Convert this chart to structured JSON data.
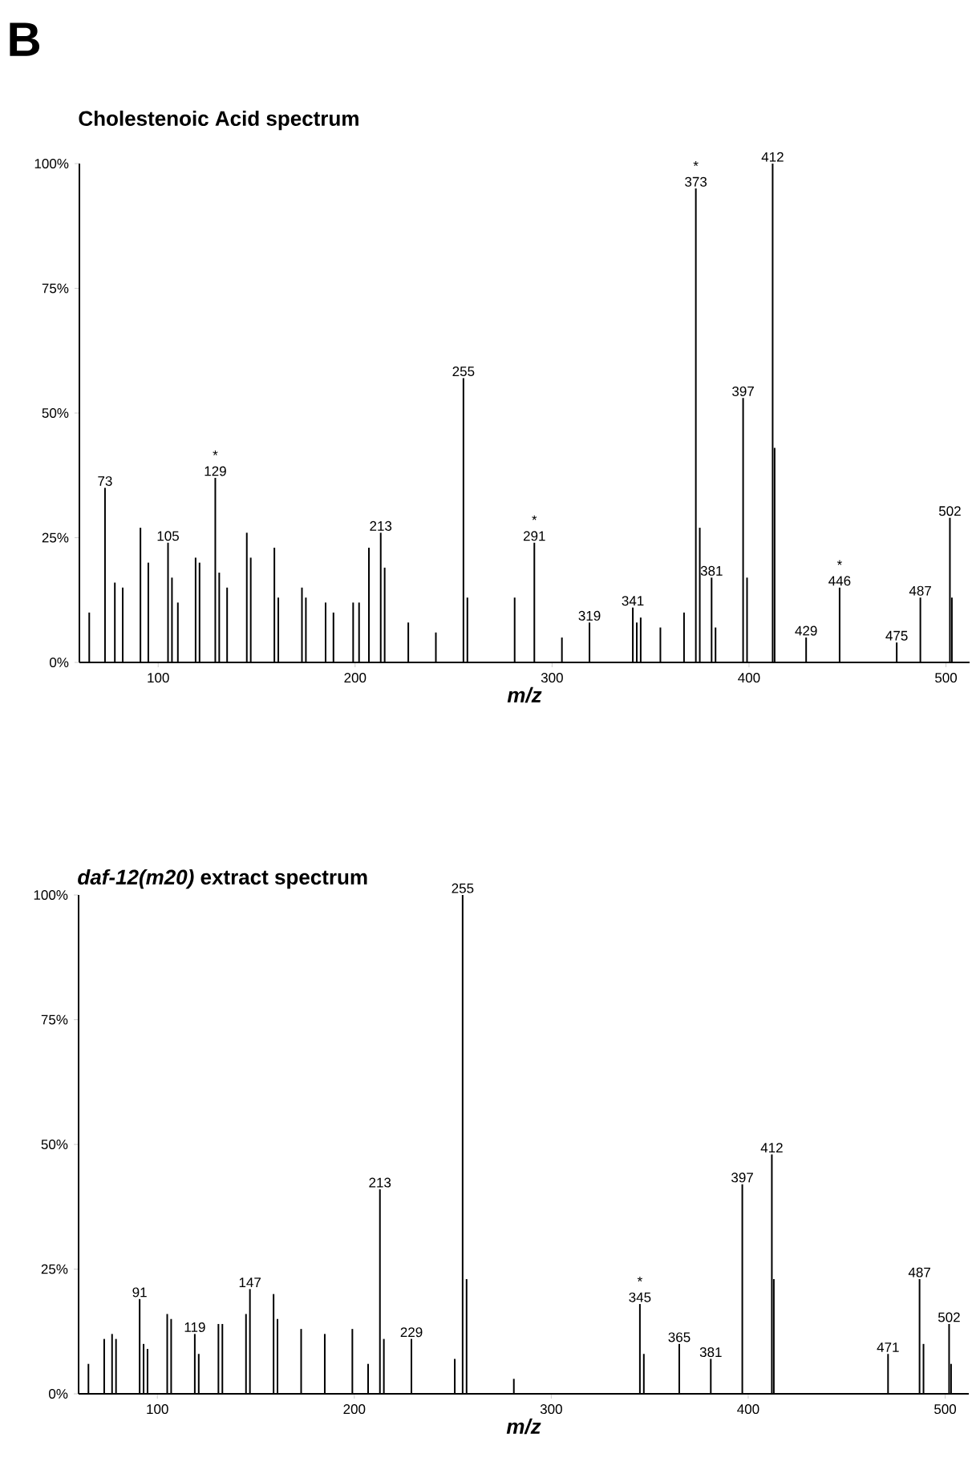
{
  "chart_data": [
    {
      "type": "bar",
      "title": "Cholestenoic Acid spectrum",
      "xlabel": "m/z",
      "color": "#000000",
      "x": [
        65,
        73,
        78,
        82,
        91,
        95,
        105,
        107,
        110,
        119,
        121,
        129,
        131,
        135,
        145,
        147,
        159,
        161,
        173,
        175,
        185,
        189,
        199,
        202,
        207,
        213,
        215,
        227,
        241,
        255,
        257,
        281,
        291,
        305,
        319,
        341,
        343,
        345,
        355,
        367,
        373,
        375,
        381,
        383,
        397,
        399,
        412,
        413,
        429,
        446,
        475,
        487,
        502,
        503
      ],
      "values": [
        10,
        35,
        16,
        15,
        27,
        20,
        24,
        17,
        12,
        21,
        20,
        37,
        18,
        15,
        26,
        21,
        23,
        13,
        15,
        13,
        12,
        10,
        12,
        12,
        23,
        26,
        19,
        8,
        6,
        57,
        13,
        13,
        24,
        5,
        8,
        11,
        8,
        9,
        7,
        10,
        95,
        27,
        17,
        7,
        53,
        17,
        100,
        43,
        5,
        15,
        4,
        13,
        29,
        13
      ],
      "xlim": [
        60,
        512
      ],
      "xticks": [
        100,
        200,
        300,
        400,
        500
      ],
      "ylim": [
        0,
        100
      ],
      "yticks": [
        {
          "value": 0,
          "label": "0%"
        },
        {
          "value": 25,
          "label": "25%"
        },
        {
          "value": 50,
          "label": "50%"
        },
        {
          "value": 75,
          "label": "75%"
        },
        {
          "value": 100,
          "label": "100%"
        }
      ],
      "annotations": [
        "B",
        {
          "text": "73",
          "x": 73,
          "y": 35
        },
        {
          "text": "105",
          "x": 105,
          "y": 24
        },
        {
          "text": "*",
          "x": 129,
          "y": 37
        },
        {
          "text": "129",
          "x": 129,
          "y": 37
        },
        {
          "text": "213",
          "x": 213,
          "y": 26
        },
        {
          "text": "255",
          "x": 255,
          "y": 57
        },
        {
          "text": "*",
          "x": 291,
          "y": 24
        },
        {
          "text": "291",
          "x": 291,
          "y": 24
        },
        {
          "text": "319",
          "x": 319,
          "y": 8
        },
        {
          "text": "341",
          "x": 341,
          "y": 11
        },
        {
          "text": "*",
          "x": 373,
          "y": 95
        },
        {
          "text": "373",
          "x": 373,
          "y": 95
        },
        {
          "text": "381",
          "x": 381,
          "y": 17
        },
        {
          "text": "397",
          "x": 397,
          "y": 53
        },
        {
          "text": "412",
          "x": 412,
          "y": 100
        },
        {
          "text": "429",
          "x": 429,
          "y": 5
        },
        {
          "text": "*",
          "x": 446,
          "y": 15
        },
        {
          "text": "446",
          "x": 446,
          "y": 15
        },
        {
          "text": "475",
          "x": 475,
          "y": 4
        },
        {
          "text": "487",
          "x": 487,
          "y": 13
        },
        {
          "text": "502",
          "x": 502,
          "y": 29
        }
      ]
    },
    {
      "type": "bar",
      "title": "*daf-12(m20)* extract spectrum",
      "xlabel": "m/z",
      "color": "#000000",
      "x": [
        65,
        73,
        77,
        79,
        91,
        93,
        95,
        105,
        107,
        119,
        121,
        131,
        133,
        145,
        147,
        159,
        161,
        173,
        185,
        199,
        207,
        213,
        215,
        229,
        251,
        255,
        257,
        281,
        345,
        347,
        365,
        381,
        397,
        412,
        413,
        471,
        487,
        489,
        502,
        503
      ],
      "values": [
        6,
        11,
        12,
        11,
        19,
        10,
        9,
        16,
        15,
        12,
        8,
        14,
        14,
        16,
        21,
        20,
        15,
        13,
        12,
        13,
        6,
        41,
        11,
        11,
        7,
        100,
        23,
        3,
        18,
        8,
        10,
        7,
        42,
        48,
        23,
        8,
        23,
        10,
        14,
        6
      ],
      "xlim": [
        60,
        512
      ],
      "xticks": [
        100,
        200,
        300,
        400,
        500
      ],
      "ylim": [
        0,
        100
      ],
      "yticks": [
        {
          "value": 0,
          "label": "0%"
        },
        {
          "value": 25,
          "label": "25%"
        },
        {
          "value": 50,
          "label": "50%"
        },
        {
          "value": 75,
          "label": "75%"
        },
        {
          "value": 100,
          "label": "100%"
        }
      ],
      "annotations": [
        {
          "text": "91",
          "x": 91,
          "y": 19
        },
        {
          "text": "119",
          "x": 119,
          "y": 12
        },
        {
          "text": "147",
          "x": 147,
          "y": 21
        },
        {
          "text": "213",
          "x": 213,
          "y": 41
        },
        {
          "text": "229",
          "x": 229,
          "y": 11
        },
        {
          "text": "255",
          "x": 255,
          "y": 100
        },
        {
          "text": "*",
          "x": 345,
          "y": 18
        },
        {
          "text": "345",
          "x": 345,
          "y": 18
        },
        {
          "text": "365",
          "x": 365,
          "y": 10
        },
        {
          "text": "381",
          "x": 381,
          "y": 7
        },
        {
          "text": "397",
          "x": 397,
          "y": 42
        },
        {
          "text": "412",
          "x": 412,
          "y": 48
        },
        {
          "text": "471",
          "x": 471,
          "y": 8
        },
        {
          "text": "487",
          "x": 487,
          "y": 23
        },
        {
          "text": "502",
          "x": 502,
          "y": 14
        }
      ]
    }
  ]
}
